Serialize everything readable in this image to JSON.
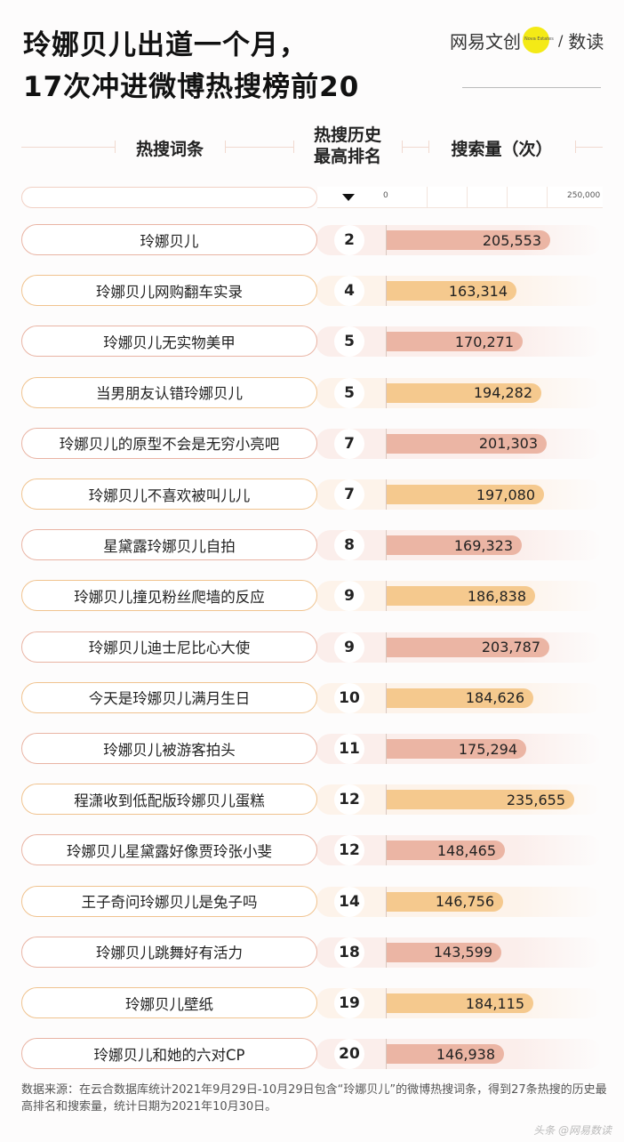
{
  "title": {
    "line1": "玲娜贝儿出道一个月，",
    "line2": "17次冲进微博热搜榜前20"
  },
  "logo": {
    "left": "网易文创",
    "dot_text": "Nova Estates",
    "slash": "/",
    "right": "数读"
  },
  "headers": {
    "term": "热搜词条",
    "rank_line1": "热搜历史",
    "rank_line2": "最高排名",
    "volume": "搜索量（次）"
  },
  "axis": {
    "min_label": "0",
    "max_label": "250,000"
  },
  "colors": {
    "pink_bar": "#ebb5a4",
    "orange_bar": "#f5c98e",
    "pink_track": "#fbeeeb",
    "orange_track": "#fdf3ea",
    "pink_border": "#e9b4a4",
    "orange_border": "#f0c38f"
  },
  "rows": [
    {
      "term": "玲娜贝儿",
      "rank": "2",
      "volume_label": "205,553",
      "volume": 205553,
      "color": "pink"
    },
    {
      "term": "玲娜贝儿网购翻车实录",
      "rank": "4",
      "volume_label": "163,314",
      "volume": 163314,
      "color": "orange"
    },
    {
      "term": "玲娜贝儿无实物美甲",
      "rank": "5",
      "volume_label": "170,271",
      "volume": 170271,
      "color": "pink"
    },
    {
      "term": "当男朋友认错玲娜贝儿",
      "rank": "5",
      "volume_label": "194,282",
      "volume": 194282,
      "color": "orange"
    },
    {
      "term": "玲娜贝儿的原型不会是无穷小亮吧",
      "rank": "7",
      "volume_label": "201,303",
      "volume": 201303,
      "color": "pink"
    },
    {
      "term": "玲娜贝儿不喜欢被叫儿儿",
      "rank": "7",
      "volume_label": "197,080",
      "volume": 197080,
      "color": "orange"
    },
    {
      "term": "星黛露玲娜贝儿自拍",
      "rank": "8",
      "volume_label": "169,323",
      "volume": 169323,
      "color": "pink"
    },
    {
      "term": "玲娜贝儿撞见粉丝爬墙的反应",
      "rank": "9",
      "volume_label": "186,838",
      "volume": 186838,
      "color": "orange"
    },
    {
      "term": "玲娜贝儿迪士尼比心大使",
      "rank": "9",
      "volume_label": "203,787",
      "volume": 203787,
      "color": "pink"
    },
    {
      "term": "今天是玲娜贝儿满月生日",
      "rank": "10",
      "volume_label": "184,626",
      "volume": 184626,
      "color": "orange"
    },
    {
      "term": "玲娜贝儿被游客拍头",
      "rank": "11",
      "volume_label": "175,294",
      "volume": 175294,
      "color": "pink"
    },
    {
      "term": "程潇收到低配版玲娜贝儿蛋糕",
      "rank": "12",
      "volume_label": "235,655",
      "volume": 235655,
      "color": "orange"
    },
    {
      "term": "玲娜贝儿星黛露好像贾玲张小斐",
      "rank": "12",
      "volume_label": "148,465",
      "volume": 148465,
      "color": "pink"
    },
    {
      "term": "王子奇问玲娜贝儿是兔子吗",
      "rank": "14",
      "volume_label": "146,756",
      "volume": 146756,
      "color": "orange"
    },
    {
      "term": "玲娜贝儿跳舞好有活力",
      "rank": "18",
      "volume_label": "143,599",
      "volume": 143599,
      "color": "pink"
    },
    {
      "term": "玲娜贝儿壁纸",
      "rank": "19",
      "volume_label": "184,115",
      "volume": 184115,
      "color": "orange"
    },
    {
      "term": "玲娜贝儿和她的六对CP",
      "rank": "20",
      "volume_label": "146,938",
      "volume": 146938,
      "color": "pink"
    }
  ],
  "footer": {
    "source": "数据来源：在云合数据库统计2021年9月29日-10月29日包含“玲娜贝儿”的微博热搜词条，得到27条热搜的历史最高排名和搜索量，统计日期为2021年10月30日。"
  },
  "watermark": "头条 @网易数读",
  "chart_data": {
    "type": "bar",
    "orientation": "horizontal",
    "title": "玲娜贝儿出道一个月，17次冲进微博热搜榜前20",
    "xlabel": "搜索量（次）",
    "ylabel": "热搜词条",
    "xlim": [
      0,
      250000
    ],
    "x_tick_labels": [
      "0",
      "250,000"
    ],
    "grid": true,
    "categories": [
      "玲娜贝儿",
      "玲娜贝儿网购翻车实录",
      "玲娜贝儿无实物美甲",
      "当男朋友认错玲娜贝儿",
      "玲娜贝儿的原型不会是无穷小亮吧",
      "玲娜贝儿不喜欢被叫儿儿",
      "星黛露玲娜贝儿自拍",
      "玲娜贝儿撞见粉丝爬墙的反应",
      "玲娜贝儿迪士尼比心大使",
      "今天是玲娜贝儿满月生日",
      "玲娜贝儿被游客拍头",
      "程潇收到低配版玲娜贝儿蛋糕",
      "玲娜贝儿星黛露好像贾玲张小斐",
      "王子奇问玲娜贝儿是兔子吗",
      "玲娜贝儿跳舞好有活力",
      "玲娜贝儿壁纸",
      "玲娜贝儿和她的六对CP"
    ],
    "series": [
      {
        "name": "搜索量（次）",
        "values": [
          205553,
          163314,
          170271,
          194282,
          201303,
          197080,
          169323,
          186838,
          203787,
          184626,
          175294,
          235655,
          148465,
          146756,
          143599,
          184115,
          146938
        ]
      },
      {
        "name": "热搜历史最高排名",
        "values": [
          2,
          4,
          5,
          5,
          7,
          7,
          8,
          9,
          9,
          10,
          11,
          12,
          12,
          14,
          18,
          19,
          20
        ]
      }
    ],
    "sort": "热搜历史最高排名 ascending",
    "source": "数据来源：在云合数据库统计2021年9月29日-10月29日包含“玲娜贝儿”的微博热搜词条，得到27条热搜的历史最高排名和搜索量，统计日期为2021年10月30日。"
  }
}
